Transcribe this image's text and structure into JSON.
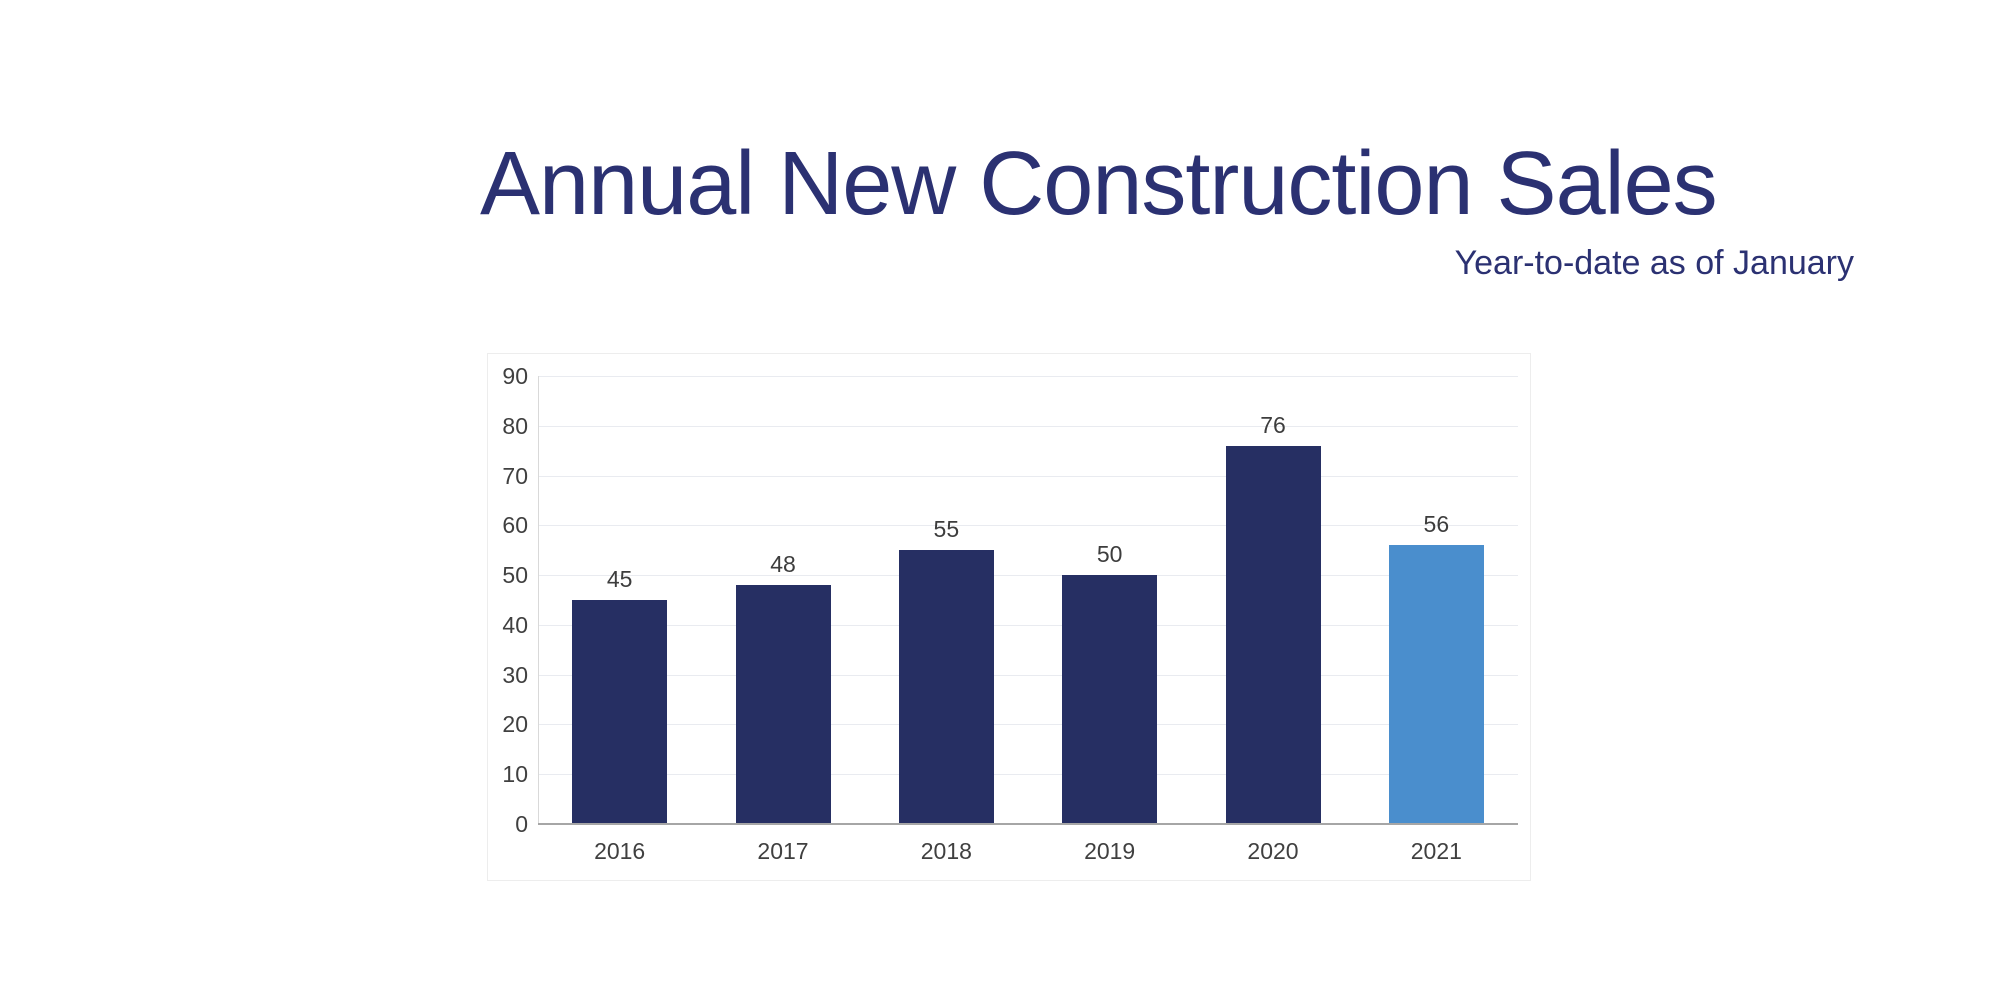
{
  "chart_data": {
    "type": "bar",
    "title": "Annual New Construction Sales",
    "subtitle": "Year-to-date as of January",
    "categories": [
      "2016",
      "2017",
      "2018",
      "2019",
      "2020",
      "2021"
    ],
    "values": [
      45,
      48,
      55,
      50,
      76,
      56
    ],
    "data_labels": [
      "45",
      "48",
      "55",
      "50",
      "76",
      "56"
    ],
    "ylim": [
      0,
      90
    ],
    "yticks": [
      0,
      10,
      20,
      30,
      40,
      50,
      60,
      70,
      80,
      90
    ],
    "grid": "horizontal",
    "legend": "none",
    "highlight_index": 5,
    "colors": {
      "bar_default": "#262f63",
      "bar_highlight": "#4a8ecd",
      "title_text": "#2b3172",
      "subtitle_text": "#2b3172",
      "tick_text": "#404040",
      "data_label_text": "#3d3d3d",
      "gridline": "#e9ebf0",
      "yaxis_line": "#d9d9d9",
      "baseline": "#a6a6a6",
      "background": "#ffffff"
    }
  }
}
